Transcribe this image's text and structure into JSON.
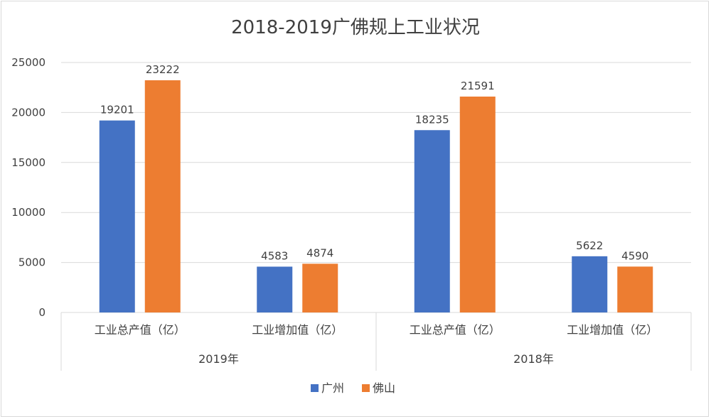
{
  "chart_data": {
    "type": "bar",
    "title": "2018-2019广佛规上工业状况",
    "groups": [
      {
        "label": "2019年",
        "categories": [
          "工业总产值（亿）",
          "工业增加值（亿）"
        ]
      },
      {
        "label": "2018年",
        "categories": [
          "工业总产值（亿）",
          "工业增加值（亿）"
        ]
      }
    ],
    "series": [
      {
        "name": "广州",
        "color": "#4472c4",
        "values": [
          19201,
          4583,
          18235,
          5622
        ]
      },
      {
        "name": "佛山",
        "color": "#ed7d31",
        "values": [
          23222,
          4874,
          21591,
          4590
        ]
      }
    ],
    "ylim": [
      0,
      25000
    ],
    "yticks": [
      0,
      5000,
      10000,
      15000,
      20000,
      25000
    ],
    "grid": true,
    "legend_position": "bottom",
    "data_labels": true
  },
  "colors": {
    "grid": "#d9d9d9",
    "axis_text": "#404040",
    "background": "#ffffff"
  }
}
